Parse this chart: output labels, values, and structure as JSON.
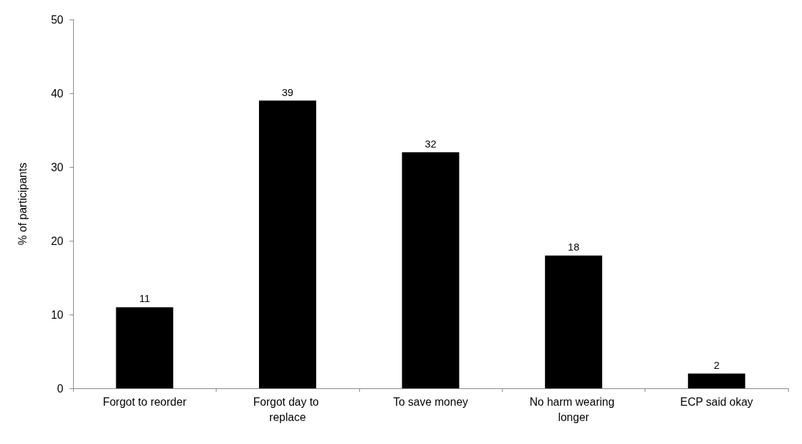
{
  "chart_data": {
    "type": "bar",
    "ylabel": "% of participants",
    "categories": [
      "Forgot to reorder",
      "Forgot day to replace",
      "To save money",
      "No harm wearing longer",
      "ECP said okay"
    ],
    "values": [
      11,
      39,
      32,
      18,
      2
    ],
    "color": "#000000",
    "ylim": [
      0,
      50
    ],
    "yticks": [
      0,
      10,
      20,
      30,
      40,
      50
    ],
    "grid": false,
    "data_labels": true
  }
}
